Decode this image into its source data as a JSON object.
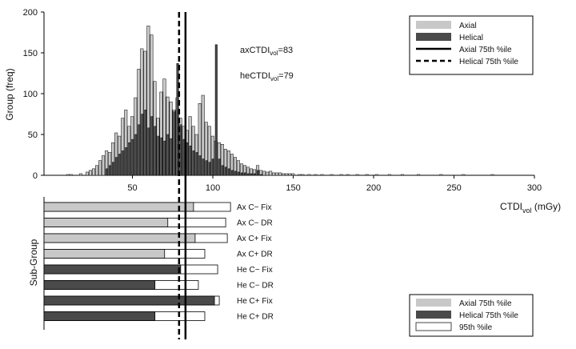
{
  "chart_data": [
    {
      "type": "histogram",
      "ylabel": "Group (freq)",
      "xlabel_main": "CTDI",
      "xlabel_sub": "vol",
      "xlabel_unit": " (mGy)",
      "xlim": [
        -5,
        300
      ],
      "ylim": [
        0,
        200
      ],
      "xticks": [
        50,
        100,
        150,
        200,
        250,
        300
      ],
      "yticks": [
        0,
        50,
        100,
        150,
        200
      ],
      "bin_width": 2,
      "series": [
        {
          "name": "Axial",
          "color": "#c8c8c8",
          "bins": [
            [
              10,
              1
            ],
            [
              12,
              1
            ],
            [
              18,
              2
            ],
            [
              22,
              4
            ],
            [
              24,
              6
            ],
            [
              26,
              8
            ],
            [
              28,
              12
            ],
            [
              30,
              18
            ],
            [
              32,
              24
            ],
            [
              34,
              30
            ],
            [
              36,
              28
            ],
            [
              38,
              40
            ],
            [
              40,
              52
            ],
            [
              42,
              48
            ],
            [
              44,
              70
            ],
            [
              46,
              80
            ],
            [
              48,
              60
            ],
            [
              50,
              72
            ],
            [
              52,
              95
            ],
            [
              54,
              130
            ],
            [
              56,
              155
            ],
            [
              58,
              152
            ],
            [
              60,
              183
            ],
            [
              62,
              172
            ],
            [
              64,
              115
            ],
            [
              66,
              70
            ],
            [
              68,
              102
            ],
            [
              70,
              118
            ],
            [
              72,
              96
            ],
            [
              74,
              90
            ],
            [
              76,
              80
            ],
            [
              78,
              95
            ],
            [
              80,
              70
            ],
            [
              82,
              60
            ],
            [
              84,
              55
            ],
            [
              86,
              72
            ],
            [
              88,
              60
            ],
            [
              90,
              50
            ],
            [
              92,
              88
            ],
            [
              94,
              98
            ],
            [
              96,
              65
            ],
            [
              98,
              60
            ],
            [
              100,
              48
            ],
            [
              102,
              42
            ],
            [
              104,
              40
            ],
            [
              106,
              38
            ],
            [
              108,
              32
            ],
            [
              110,
              30
            ],
            [
              112,
              26
            ],
            [
              114,
              22
            ],
            [
              116,
              18
            ],
            [
              118,
              14
            ],
            [
              120,
              12
            ],
            [
              122,
              10
            ],
            [
              124,
              8
            ],
            [
              126,
              7
            ],
            [
              128,
              12
            ],
            [
              130,
              6
            ],
            [
              132,
              5
            ],
            [
              134,
              4
            ],
            [
              136,
              5
            ],
            [
              138,
              3
            ],
            [
              140,
              3
            ],
            [
              142,
              3
            ],
            [
              144,
              2
            ],
            [
              146,
              2
            ],
            [
              148,
              2
            ],
            [
              150,
              2
            ],
            [
              154,
              1
            ],
            [
              156,
              1
            ],
            [
              160,
              1
            ],
            [
              164,
              1
            ],
            [
              168,
              1
            ],
            [
              174,
              1
            ],
            [
              180,
              1
            ],
            [
              184,
              1
            ],
            [
              190,
              1
            ],
            [
              196,
              1
            ],
            [
              202,
              1
            ],
            [
              210,
              1
            ],
            [
              218,
              1
            ],
            [
              228,
              1
            ],
            [
              242,
              1
            ],
            [
              256,
              1
            ],
            [
              274,
              1
            ]
          ]
        },
        {
          "name": "Helical",
          "color": "#4a4a4a",
          "bins": [
            [
              34,
              8
            ],
            [
              36,
              12
            ],
            [
              38,
              16
            ],
            [
              40,
              22
            ],
            [
              42,
              26
            ],
            [
              44,
              30
            ],
            [
              46,
              34
            ],
            [
              48,
              40
            ],
            [
              50,
              44
            ],
            [
              52,
              50
            ],
            [
              54,
              62
            ],
            [
              56,
              75
            ],
            [
              58,
              80
            ],
            [
              60,
              58
            ],
            [
              62,
              72
            ],
            [
              64,
              60
            ],
            [
              66,
              48
            ],
            [
              68,
              46
            ],
            [
              70,
              42
            ],
            [
              72,
              50
            ],
            [
              74,
              45
            ],
            [
              76,
              78
            ],
            [
              78,
              137
            ],
            [
              80,
              62
            ],
            [
              82,
              44
            ],
            [
              84,
              40
            ],
            [
              86,
              36
            ],
            [
              88,
              30
            ],
            [
              90,
              28
            ],
            [
              92,
              24
            ],
            [
              94,
              20
            ],
            [
              96,
              18
            ],
            [
              98,
              16
            ],
            [
              100,
              20
            ],
            [
              102,
              160
            ],
            [
              104,
              20
            ],
            [
              106,
              12
            ],
            [
              108,
              10
            ],
            [
              110,
              8
            ],
            [
              112,
              6
            ],
            [
              114,
              5
            ],
            [
              116,
              4
            ],
            [
              118,
              3
            ],
            [
              120,
              3
            ],
            [
              122,
              2
            ],
            [
              124,
              2
            ],
            [
              126,
              2
            ],
            [
              128,
              6
            ],
            [
              130,
              1
            ]
          ]
        }
      ],
      "reference_lines": [
        {
          "name": "Axial 75th %ile",
          "x": 83,
          "style": "solid"
        },
        {
          "name": "Helical 75th %ile",
          "x": 79,
          "style": "dashed"
        }
      ],
      "annotations": [
        {
          "prefix": "axCTDI",
          "sub": "vol",
          "suffix": "=83"
        },
        {
          "prefix": "heCTDI",
          "sub": "vol",
          "suffix": "=79"
        }
      ],
      "legend": {
        "position": "top-right",
        "entries": [
          "Axial",
          "Helical",
          "Axial 75th %ile",
          "Helical 75th %ile"
        ]
      }
    },
    {
      "type": "bar",
      "orientation": "horizontal",
      "ylabel": "Sub-Group",
      "categories": [
        "Ax C− Fix",
        "Ax C− DR",
        "Ax C+ Fix",
        "Ax C+ DR",
        "He C− Fix",
        "He C− DR",
        "He C+ Fix",
        "He C+ DR"
      ],
      "group": [
        "Axial",
        "Axial",
        "Axial",
        "Axial",
        "Helical",
        "Helical",
        "Helical",
        "Helical"
      ],
      "p75": [
        88,
        72,
        89,
        70,
        80,
        64,
        101,
        64
      ],
      "p95": [
        111,
        108,
        109,
        95,
        103,
        91,
        104,
        95
      ],
      "legend": {
        "position": "bottom-right",
        "entries": [
          "Axial 75th %ile",
          "Helical 75th %ile",
          "95th %ile"
        ]
      }
    }
  ]
}
